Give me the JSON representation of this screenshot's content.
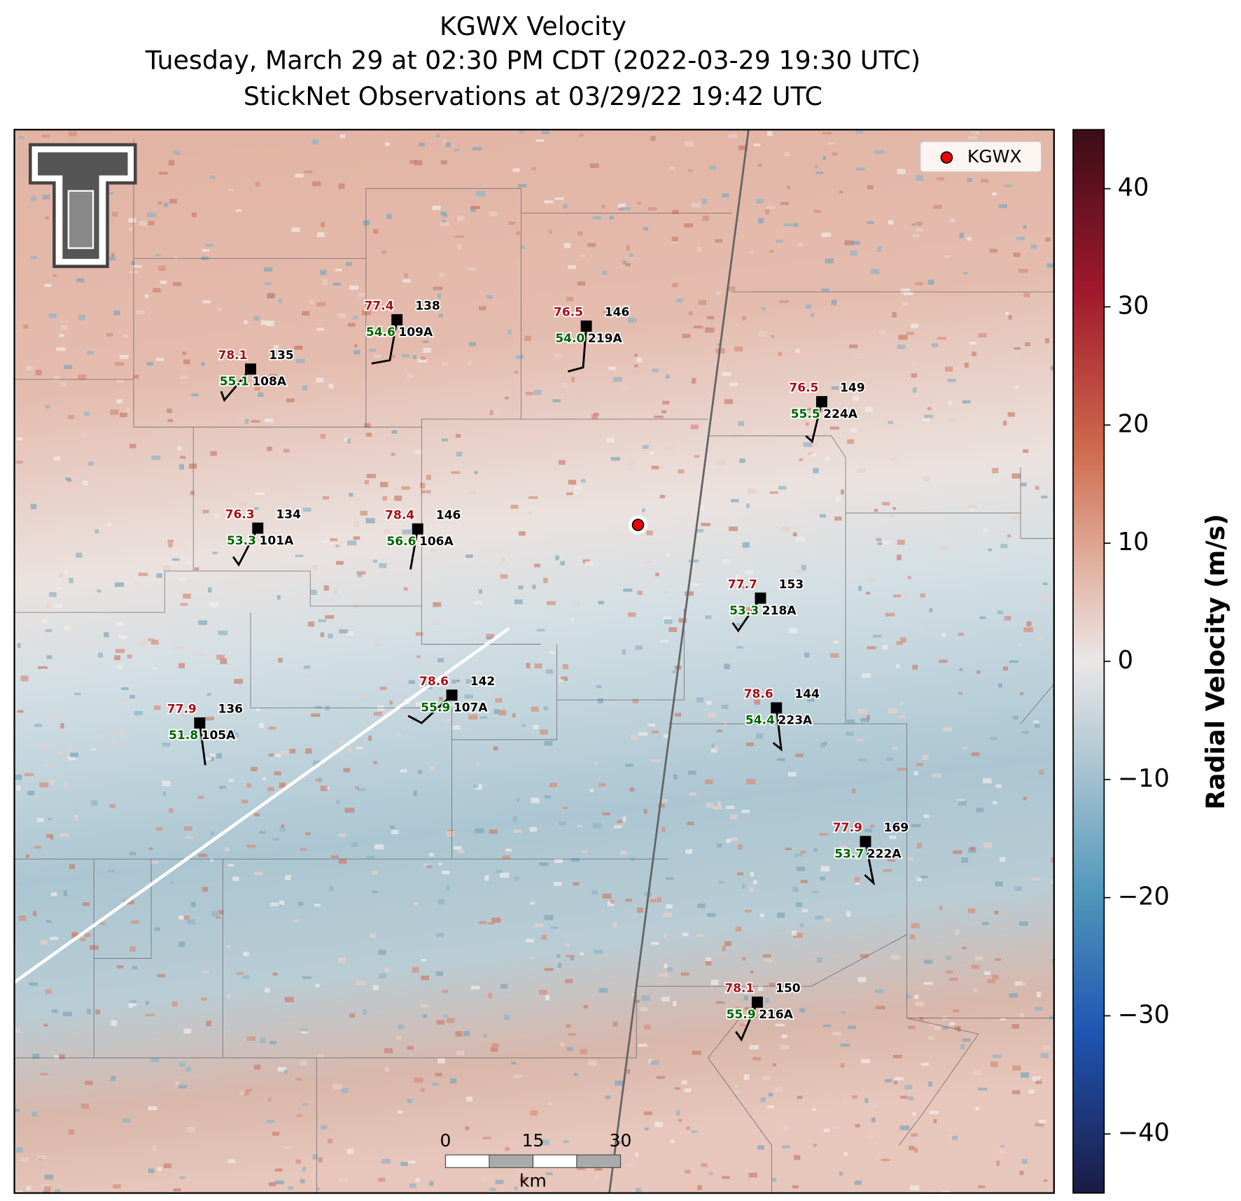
{
  "header": {
    "title": "KGWX Velocity",
    "subtitle": "Tuesday, March 29 at 02:30 PM CDT (2022-03-29 19:30 UTC)",
    "observation": "StickNet Observations at 03/29/22 19:42 UTC"
  },
  "legend": {
    "label": "KGWX"
  },
  "stations": [
    {
      "id": "108A",
      "temperature": 78.1,
      "dewpoint": 55.1,
      "value": 135
    },
    {
      "id": "109A",
      "temperature": 77.4,
      "dewpoint": 54.6,
      "value": 138
    },
    {
      "id": "219A",
      "temperature": 76.5,
      "dewpoint": {
        "value": 54,
        "label": "54.0"
      },
      "value": 146
    },
    {
      "id": "224A",
      "temperature": 76.5,
      "dewpoint": 55.5,
      "value": 149
    },
    {
      "id": "101A",
      "temperature": 76.3,
      "dewpoint": 53.3,
      "value": 134
    },
    {
      "id": "106A",
      "temperature": 78.4,
      "dewpoint": 56.6,
      "value": 146
    },
    {
      "id": "218A",
      "temperature": 77.7,
      "dewpoint": 53.3,
      "value": 153
    },
    {
      "id": "107A",
      "temperature": 78.6,
      "dewpoint": 55.9,
      "value": 142
    },
    {
      "id": "105A",
      "temperature": 77.9,
      "dewpoint": 51.8,
      "value": 136
    },
    {
      "id": "223A",
      "temperature": 78.6,
      "dewpoint": 54.4,
      "value": 144
    },
    {
      "id": "222A",
      "temperature": 77.9,
      "dewpoint": 53.7,
      "value": 169
    },
    {
      "id": "216A",
      "temperature": 78.1,
      "dewpoint": 55.9,
      "value": 150
    }
  ],
  "colorbar": {
    "label": "Radial Velocity (m/s)",
    "lim": [
      -45,
      45
    ],
    "ticks": [
      {
        "value": -40,
        "label": "−40"
      },
      {
        "value": -30,
        "label": "−30"
      },
      {
        "value": -20,
        "label": "−20"
      },
      {
        "value": -10,
        "label": "−10"
      },
      0,
      10,
      20,
      30,
      40
    ]
  },
  "scale_bar": {
    "ticks": [
      0,
      15,
      30
    ],
    "unit": "km"
  }
}
